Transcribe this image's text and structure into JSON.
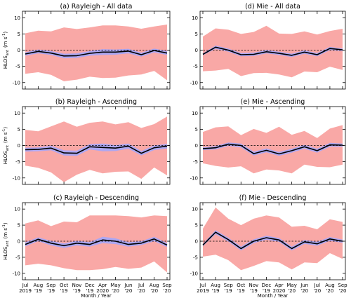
{
  "chart_data": {
    "type": "line",
    "x_tick_labels": [
      [
        "Jul",
        "2019"
      ],
      [
        "Aug",
        "'19"
      ],
      [
        "Sep",
        "'19"
      ],
      [
        "Oct",
        "'19"
      ],
      [
        "Nov",
        "'19"
      ],
      [
        "Dec",
        "'19"
      ],
      [
        "Apr",
        "2020"
      ],
      [
        "May",
        "'20"
      ],
      [
        "Jun",
        "'20"
      ],
      [
        "Jul",
        "'20"
      ],
      [
        "Aug",
        "'20"
      ],
      [
        "Sep",
        "'20"
      ]
    ],
    "xlabel": "Month / Year",
    "ylabel_main": "HLOS",
    "ylabel_sub": "ant",
    "ylabel_unit": "(m s",
    "ylabel_exp": "-1",
    "ylabel_close": ")",
    "ylim": [
      -12,
      12
    ],
    "yticks": [
      -10,
      -5,
      0,
      5,
      10
    ],
    "panels": [
      {
        "title": "(a) Rayleigh - All data",
        "mean": [
          -1.2,
          -0.4,
          -0.9,
          -1.8,
          -1.7,
          -1.0,
          -0.6,
          -0.6,
          -0.3,
          -1.4,
          -0.1,
          -0.9
        ],
        "ci": [
          0.5,
          0.6,
          0.6,
          0.7,
          0.7,
          0.7,
          0.9,
          0.8,
          0.7,
          0.6,
          0.6,
          0.6
        ],
        "sd_upper": [
          5.2,
          6.0,
          5.8,
          7.0,
          6.5,
          7.0,
          7.6,
          7.6,
          7.3,
          6.6,
          7.3,
          7.9
        ],
        "sd_lower": [
          -7.3,
          -6.8,
          -7.6,
          -9.6,
          -9.1,
          -8.2,
          -8.6,
          -8.5,
          -7.8,
          -7.5,
          -6.4,
          -9.3
        ]
      },
      {
        "title": "(d) Mie - All data",
        "mean": [
          -1.3,
          0.9,
          0.0,
          -1.4,
          -1.3,
          -0.5,
          -1.0,
          -1.6,
          -0.6,
          -1.4,
          0.5,
          0.1
        ],
        "ci": [
          0.3,
          0.5,
          0.5,
          0.5,
          0.5,
          0.5,
          0.5,
          0.5,
          0.5,
          0.5,
          0.5,
          0.4
        ],
        "sd_upper": [
          4.2,
          6.7,
          6.3,
          5.0,
          5.6,
          7.5,
          5.1,
          5.0,
          5.8,
          4.8,
          5.9,
          6.6
        ],
        "sd_lower": [
          -6.5,
          -6.3,
          -5.8,
          -8.0,
          -7.1,
          -7.0,
          -7.5,
          -8.4,
          -6.6,
          -6.8,
          -5.1,
          -6.1
        ]
      },
      {
        "title": "(b) Rayleigh - Ascending",
        "mean": [
          -1.3,
          -1.2,
          -0.8,
          -2.3,
          -2.4,
          -0.4,
          -0.6,
          -0.8,
          -0.2,
          -2.4,
          -0.7,
          -0.2
        ],
        "ci": [
          0.6,
          0.6,
          0.7,
          0.8,
          0.8,
          0.8,
          1.2,
          0.9,
          0.8,
          0.7,
          0.7,
          0.7
        ],
        "sd_upper": [
          4.8,
          4.4,
          5.9,
          7.4,
          5.8,
          7.0,
          7.4,
          6.5,
          7.2,
          5.4,
          6.6,
          8.9
        ],
        "sd_lower": [
          -6.2,
          -6.9,
          -8.3,
          -11.3,
          -9.0,
          -7.5,
          -8.6,
          -8.1,
          -8.0,
          -10.3,
          -6.8,
          -9.2
        ]
      },
      {
        "title": "(e) Mie - Ascending",
        "mean": [
          -1.0,
          -0.7,
          0.4,
          0.0,
          -2.5,
          -1.5,
          -2.6,
          -1.6,
          -0.4,
          -1.6,
          0.2,
          0.1
        ],
        "ci": [
          0.4,
          0.5,
          0.5,
          0.6,
          0.6,
          0.6,
          0.6,
          0.6,
          0.6,
          0.6,
          0.6,
          0.5
        ],
        "sd_upper": [
          4.2,
          5.6,
          5.9,
          3.2,
          5.1,
          3.9,
          5.8,
          3.3,
          4.5,
          2.3,
          5.2,
          6.3
        ],
        "sd_lower": [
          -5.5,
          -6.3,
          -6.8,
          -6.4,
          -8.6,
          -7.4,
          -7.7,
          -8.6,
          -5.9,
          -6.6,
          -6.7,
          -5.9
        ]
      },
      {
        "title": "(c) Rayleigh - Descending",
        "mean": [
          -1.0,
          0.6,
          -0.6,
          -1.4,
          -0.6,
          -1.0,
          0.4,
          0.0,
          -1.0,
          -0.6,
          0.7,
          -1.2
        ],
        "ci": [
          0.6,
          0.6,
          0.7,
          0.7,
          0.7,
          0.7,
          1.0,
          0.9,
          0.7,
          0.6,
          0.7,
          0.6
        ],
        "sd_upper": [
          5.5,
          6.5,
          4.7,
          6.1,
          5.9,
          8.0,
          8.0,
          8.0,
          7.8,
          7.4,
          8.0,
          7.8
        ],
        "sd_lower": [
          -7.5,
          -7.0,
          -7.5,
          -8.4,
          -9.0,
          -9.0,
          -8.7,
          -8.0,
          -8.6,
          -8.2,
          -6.3,
          -9.7
        ]
      },
      {
        "title": "(f) Mie - Descending",
        "mean": [
          -1.2,
          2.8,
          0.5,
          -2.3,
          0.0,
          1.1,
          0.4,
          -2.3,
          -0.2,
          -0.8,
          0.7,
          0.0
        ],
        "ci": [
          0.4,
          0.6,
          0.6,
          0.6,
          0.6,
          0.6,
          0.6,
          0.6,
          0.6,
          0.6,
          0.6,
          0.5
        ],
        "sd_upper": [
          3.9,
          10.5,
          7.0,
          5.0,
          7.0,
          8.0,
          7.4,
          4.5,
          4.8,
          3.7,
          6.8,
          6.0
        ],
        "sd_lower": [
          -4.8,
          -4.2,
          -5.9,
          -9.0,
          -7.7,
          -6.2,
          -6.6,
          -8.8,
          -6.6,
          -6.8,
          -3.7,
          -5.5
        ]
      }
    ]
  }
}
